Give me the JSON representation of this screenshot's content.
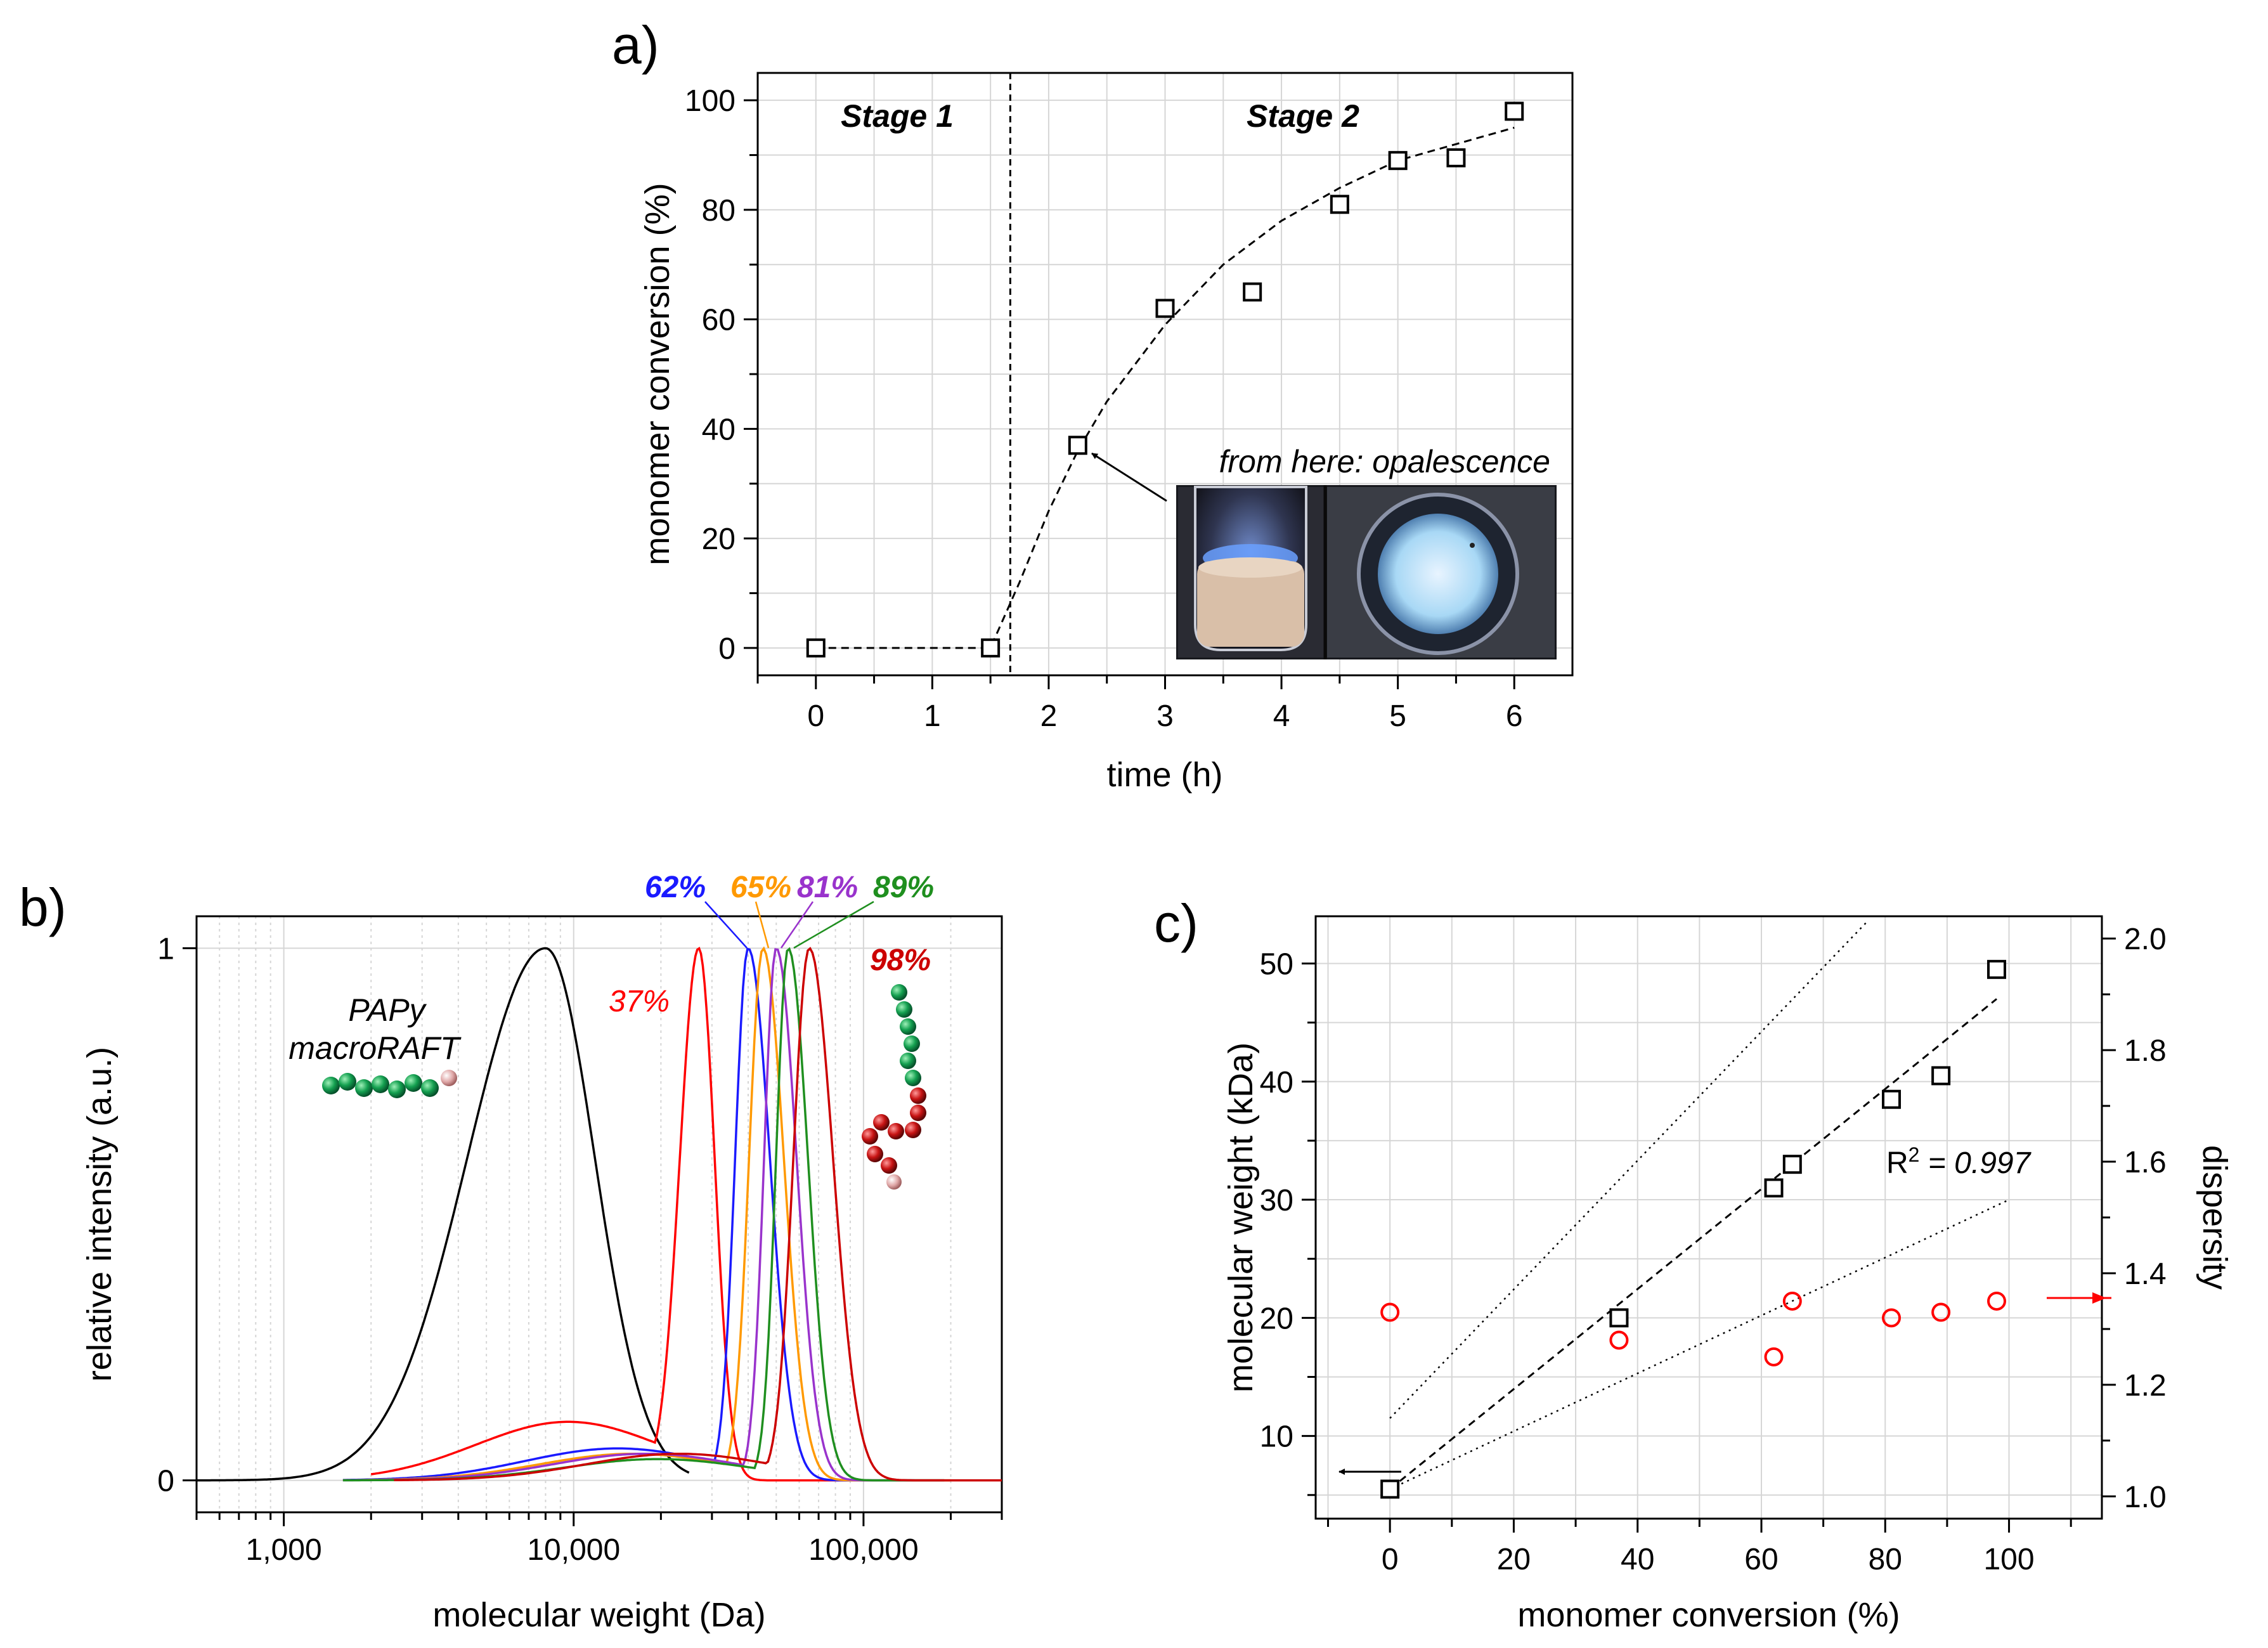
{
  "colors": {
    "black": "#000000",
    "red": "#ff0000",
    "blue": "#1a1aff",
    "orange": "#ff9900",
    "purple": "#9933cc",
    "green": "#1f8f1f",
    "darkred": "#cc0000",
    "bead_green": "#14a050",
    "bead_red": "#c81414",
    "bead_end": "#e0a8a8"
  },
  "chart_data": [
    {
      "id": "a",
      "type": "scatter",
      "panel_label": "a)",
      "xlabel": "time (h)",
      "ylabel": "monomer conversion (%)",
      "xlim": [
        -0.5,
        6.5
      ],
      "ylim": [
        -5,
        105
      ],
      "xticks": [
        "0",
        "1",
        "2",
        "3",
        "4",
        "5",
        "6"
      ],
      "yticks": [
        "0",
        "20",
        "40",
        "60",
        "80",
        "100"
      ],
      "x": [
        0,
        1.5,
        2.25,
        3,
        3.75,
        4.5,
        5,
        5.5,
        6
      ],
      "y": [
        0,
        0,
        37,
        62,
        65,
        81,
        89,
        89.5,
        98
      ],
      "stage_divider_x": 1.67,
      "stage_labels": [
        "Stage 1",
        "Stage 2"
      ],
      "annotation": "from here: opalescence",
      "fit": {
        "x": [
          0,
          1.5,
          1.75,
          2.0,
          2.25,
          2.5,
          3.0,
          3.5,
          4.0,
          4.5,
          5.0,
          5.5,
          6.0
        ],
        "y": [
          0,
          0,
          12,
          25,
          36,
          45,
          59,
          70,
          78,
          84,
          89,
          92,
          95
        ]
      },
      "grid": true
    },
    {
      "id": "b",
      "type": "line",
      "panel_label": "b)",
      "xlabel": "molecular weight (Da)",
      "ylabel": "relative intensity (a.u.)",
      "xscale": "log",
      "xlim": [
        500,
        300000
      ],
      "ylim": [
        -0.06,
        1.06
      ],
      "xticks": [
        "1,000",
        "10,000",
        "100,000"
      ],
      "yticks": [
        "0",
        "1"
      ],
      "grid": true,
      "labels": {
        "macro_top": "PAPy",
        "macro_bottom": "macroRAFT"
      },
      "series": [
        {
          "name": "PAPy macroRAFT",
          "label": "",
          "peak": 8000,
          "color": "#000000"
        },
        {
          "name": "37%",
          "label": "37%",
          "peak": 27000,
          "color": "#ff0000"
        },
        {
          "name": "62%",
          "label": "62%",
          "peak": 40000,
          "color": "#1a1aff"
        },
        {
          "name": "65%",
          "label": "65%",
          "peak": 45000,
          "color": "#ff9900"
        },
        {
          "name": "81%",
          "label": "81%",
          "peak": 50000,
          "color": "#9933cc"
        },
        {
          "name": "89%",
          "label": "89%",
          "peak": 55000,
          "color": "#1f8f1f"
        },
        {
          "name": "98%",
          "label": "98%",
          "peak": 65000,
          "color": "#cc0000"
        }
      ]
    },
    {
      "id": "c",
      "type": "scatter",
      "panel_label": "c)",
      "xlabel": "monomer conversion (%)",
      "ylabel": "molecular weight (kDa)",
      "y2label": "dispersity",
      "xlim": [
        -12,
        115
      ],
      "ylim": [
        3,
        54
      ],
      "y2lim": [
        0.96,
        2.04
      ],
      "xticks": [
        "0",
        "20",
        "40",
        "60",
        "80",
        "100"
      ],
      "yticks": [
        "10",
        "20",
        "30",
        "40",
        "50"
      ],
      "y2ticks": [
        "1.0",
        "1.2",
        "1.4",
        "1.6",
        "1.8",
        "2.0"
      ],
      "r2_label": "R",
      "r2_sup": "2",
      "r2_value": " = 0.997",
      "series": [
        {
          "name": "molecular weight",
          "axis": "left",
          "marker": "square",
          "x": [
            0,
            37,
            62,
            65,
            81,
            89,
            98
          ],
          "y": [
            5.5,
            20,
            31,
            33,
            38.5,
            40.5,
            49.5
          ]
        },
        {
          "name": "dispersity",
          "axis": "right",
          "marker": "circle",
          "x": [
            0,
            37,
            62,
            65,
            81,
            89,
            98
          ],
          "y": [
            1.33,
            1.28,
            1.25,
            1.35,
            1.32,
            1.33,
            1.35
          ]
        }
      ],
      "fit": {
        "x": [
          0,
          98
        ],
        "y": [
          5.5,
          47
        ]
      },
      "bound_upper": {
        "x": [
          0,
          77
        ],
        "y": [
          11.5,
          53.5
        ]
      },
      "bound_lower": {
        "x": [
          0,
          100
        ],
        "y": [
          5.5,
          30
        ]
      },
      "grid": true
    }
  ]
}
